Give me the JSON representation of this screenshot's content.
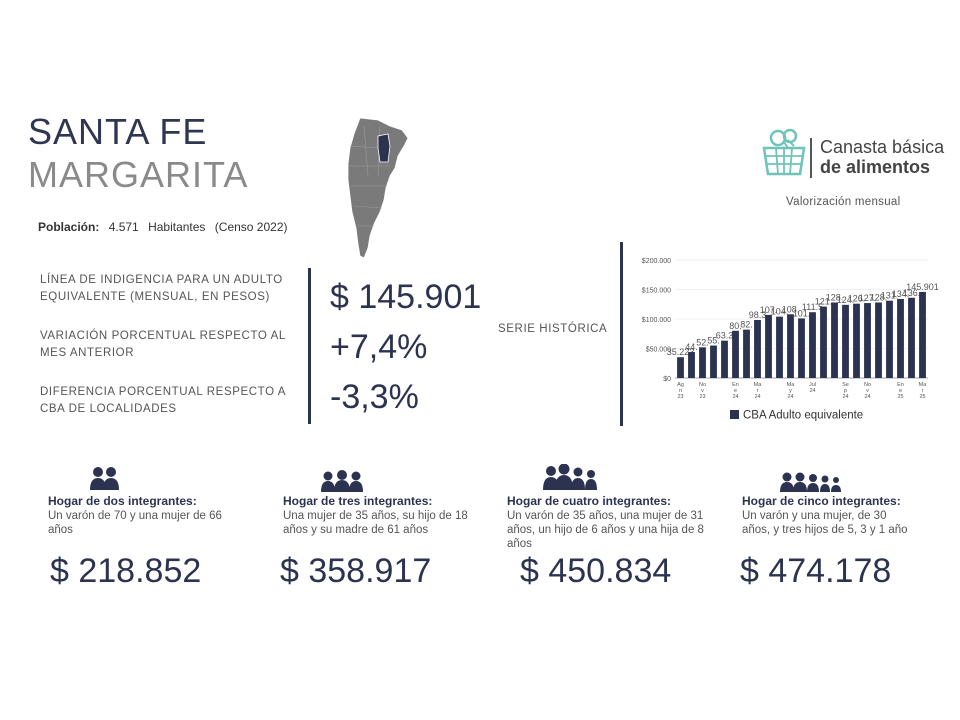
{
  "header": {
    "province": "SANTA FE",
    "city": "MARGARITA"
  },
  "population": {
    "label": "Población:",
    "value": "4.571",
    "unit": "Habitantes",
    "source": "(Censo 2022)"
  },
  "metrics": [
    {
      "label": "LÍNEA DE INDIGENCIA PARA UN ADULTO EQUIVALENTE (MENSUAL, EN PESOS)",
      "value": "$ 145.901"
    },
    {
      "label": "VARIACIÓN PORCENTUAL RESPECTO AL MES ANTERIOR",
      "value": "+7,4%"
    },
    {
      "label": "DIFERENCIA PORCENTUAL RESPECTO A CBA DE LOCALIDADES",
      "value": "-3,3%"
    }
  ],
  "serie_label": "SERIE HISTÓRICA",
  "logo": {
    "line1": "Canasta básica",
    "line2": "de alimentos",
    "subtitle": "Valorización mensual",
    "color": "#6fc3b8"
  },
  "colors": {
    "primary": "#2c3350",
    "muted": "#8a8a8a",
    "map_gray": "#7a7a7a",
    "map_highlight": "#2c3350"
  },
  "chart_data": {
    "type": "bar",
    "legend": "CBA Adulto equivalente",
    "legend_position": "bottom",
    "yticks": [
      "$0",
      "$50.000",
      "$100.000",
      "$150.000",
      "$200.000"
    ],
    "ylim": [
      0,
      200000
    ],
    "xtick_labels": [
      "Ag\nn\n23",
      "No\nv\n23",
      "En\ne\n24",
      "Ma\nr\n24",
      "Ma\ny\n24",
      "Jul\n24",
      "Se\np\n24",
      "No\nv\n24",
      "En\ne\n25",
      "Ma\nr\n25"
    ],
    "values": [
      35223,
      44000,
      52000,
      55000,
      63300,
      80000,
      82000,
      98300,
      107000,
      104000,
      108000,
      101000,
      111500,
      121000,
      128000,
      124000,
      126000,
      127000,
      128000,
      131000,
      134000,
      136000,
      145901
    ],
    "data_labels": [
      "35.223",
      "44.",
      "52.",
      "55.",
      "63.3",
      "80.",
      "82.",
      "98.3",
      "107.",
      "104.",
      "108.",
      "101.",
      "111.5",
      "121.",
      "128.",
      "124.",
      "126.",
      "127.",
      "128.",
      "131.",
      "134.",
      "136.",
      "145.901"
    ]
  },
  "households": [
    {
      "title": "Hogar de dos integrantes:",
      "desc": "Un varón de 70 y una mujer de 66 años",
      "value": "$ 218.852",
      "icon": "two-people-icon"
    },
    {
      "title": "Hogar de tres integrantes:",
      "desc": "Una mujer de 35 años, su hijo de 18 años y su madre de 61 años",
      "value": "$ 358.917",
      "icon": "three-people-icon"
    },
    {
      "title": "Hogar de cuatro integrantes:",
      "desc": "Un varón de 35 años, una mujer de 31 años, un hijo de 6 años y una hija de 8 años",
      "value": "$ 450.834",
      "icon": "four-people-icon"
    },
    {
      "title": "Hogar de cinco integrantes:",
      "desc": "Un varón y una mujer, de 30 años, y tres hijos de 5, 3 y 1 año",
      "value": "$ 474.178",
      "icon": "five-people-icon"
    }
  ]
}
